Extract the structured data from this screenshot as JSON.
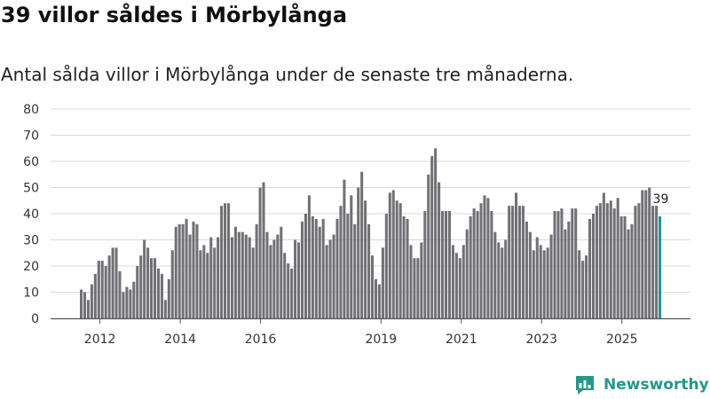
{
  "title": "39 villor såldes i Mörbylånga",
  "subtitle": "Antal sålda villor i Mörbylånga under de senaste tre månaderna.",
  "brand": "Newsworthy",
  "colors": {
    "bar": "#717075",
    "highlight": "#20968f",
    "grid": "#d9d9d9",
    "brand": "#25978b"
  },
  "chart_data": {
    "type": "bar",
    "ylim": [
      0,
      80
    ],
    "yticks": [
      0,
      10,
      20,
      30,
      40,
      50,
      60,
      70,
      80
    ],
    "xticks": [
      "2012",
      "2014",
      "2016",
      "2019",
      "2021",
      "2023",
      "2025"
    ],
    "xtick_positions": [
      2012.5,
      2014.5,
      2016.5,
      2019.5,
      2021.5,
      2023.5,
      2025.5
    ],
    "x_start": 2012,
    "x_end": 2026.5,
    "values": [
      11,
      10,
      7,
      13,
      17,
      22,
      22,
      20,
      24,
      27,
      27,
      18,
      10,
      12,
      11,
      14,
      20,
      24,
      30,
      27,
      23,
      23,
      19,
      17,
      7,
      15,
      26,
      35,
      36,
      36,
      38,
      32,
      37,
      36,
      26,
      28,
      25,
      31,
      27,
      31,
      43,
      44,
      44,
      31,
      35,
      33,
      33,
      32,
      31,
      27,
      36,
      50,
      52,
      33,
      28,
      30,
      32,
      35,
      25,
      21,
      19,
      30,
      29,
      37,
      40,
      47,
      39,
      38,
      35,
      38,
      28,
      30,
      32,
      38,
      43,
      53,
      40,
      47,
      36,
      50,
      56,
      45,
      36,
      24,
      15,
      13,
      27,
      40,
      48,
      49,
      45,
      44,
      39,
      38,
      28,
      23,
      23,
      29,
      41,
      55,
      62,
      65,
      52,
      41,
      41,
      41,
      28,
      25,
      23,
      28,
      34,
      39,
      42,
      41,
      44,
      47,
      46,
      41,
      33,
      29,
      27,
      30,
      43,
      43,
      48,
      43,
      43,
      37,
      33,
      26,
      31,
      28,
      26,
      27,
      32,
      41,
      41,
      42,
      34,
      37,
      42,
      42,
      26,
      22,
      24,
      38,
      40,
      43,
      44,
      48,
      44,
      45,
      42,
      46,
      39,
      39,
      34,
      36,
      43,
      44,
      49,
      49,
      50,
      43,
      43,
      39
    ],
    "highlight_last": true,
    "data_label": "39"
  }
}
